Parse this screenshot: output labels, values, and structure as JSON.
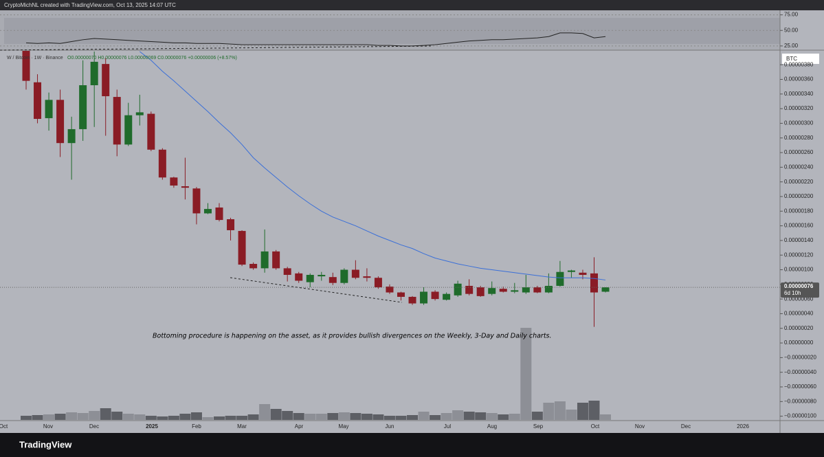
{
  "header": {
    "credit": "CryptoMichNL created with TradingView.com, Oct 13, 2025 14:07 UTC",
    "logo": "TradingView"
  },
  "chart_data": {
    "type": "candlestick",
    "symbol": "W / Bitcoin · 1W · Binance",
    "ohlc_text": "O0.00000070 H0.00000076 L0.00000069 C0.00000076 +0.00000006 (+8.57%)",
    "annotation": "Bottoming procedure is happening on the asset, as it provides bullish divergences on the Weekly, 3-Day and Daily charts.",
    "currency": "BTC",
    "last_price": "0.00000076",
    "countdown": "6d 10h",
    "up_color": "#1f6b2b",
    "down_color": "#8a1c25",
    "open": [
      4.03e-06,
      3.56e-06,
      3.07e-06,
      3.32e-06,
      2.73e-06,
      2.92e-06,
      3.52e-06,
      3.81e-06,
      3.36e-06,
      2.71e-06,
      3.11e-06,
      3.13e-06,
      2.64e-06,
      2.26e-06,
      2.14e-06,
      2.11e-06,
      1.77e-06,
      1.85e-06,
      1.69e-06,
      1.53e-06,
      1.08e-06,
      1.02e-06,
      1.25e-06,
      1.02e-06,
      9.5e-07,
      8.3e-07,
      9.1e-07,
      9e-07,
      8.2e-07,
      1e-06,
      9.1e-07,
      8.9e-07,
      7.7e-07,
      6.9e-07,
      6.3e-07,
      5.4e-07,
      7e-07,
      5.9e-07,
      6.5e-07,
      7.8e-07,
      7.6e-07,
      6.7e-07,
      7.4e-07,
      7e-07,
      6.9e-07,
      7.6e-07,
      6.9e-07,
      7.8e-07,
      9.7e-07,
      9.6e-07,
      9.5e-07,
      7e-07
    ],
    "high": [
      4.08e-06,
      3.67e-06,
      3.42e-06,
      3.46e-06,
      3.09e-06,
      3.86e-06,
      3.98e-06,
      3.89e-06,
      3.46e-06,
      3.28e-06,
      3.39e-06,
      3.16e-06,
      2.66e-06,
      2.27e-06,
      2.53e-06,
      2.13e-06,
      1.91e-06,
      1.91e-06,
      1.71e-06,
      1.54e-06,
      1.1e-06,
      1.55e-06,
      1.27e-06,
      1.04e-06,
      9.7e-07,
      9.5e-07,
      9.7e-07,
      9.6e-07,
      1.02e-06,
      1.13e-06,
      1.02e-06,
      9.1e-07,
      8e-07,
      7e-07,
      6.4e-07,
      7.6e-07,
      7.2e-07,
      6.9e-07,
      8.5e-07,
      8.7e-07,
      7.8e-07,
      8.4e-07,
      7.7e-07,
      8.2e-07,
      9.3e-07,
      7.8e-07,
      9.5e-07,
      1.12e-06,
      1e-06,
      1e-06,
      1.17e-06,
      7.6e-07
    ],
    "low": [
      3.46e-06,
      3e-06,
      2.9e-06,
      2.54e-06,
      2.23e-06,
      2.76e-06,
      2.95e-06,
      2.83e-06,
      2.55e-06,
      2.69e-06,
      2.97e-06,
      2.62e-06,
      2.23e-06,
      2.12e-06,
      1.96e-06,
      1.62e-06,
      1.76e-06,
      1.66e-06,
      1.4e-06,
      1.05e-06,
      1e-06,
      9.6e-07,
      1e-06,
      8.4e-07,
      8.2e-07,
      7.6e-07,
      8.5e-07,
      7.9e-07,
      8e-07,
      8.7e-07,
      8.4e-07,
      7.4e-07,
      6.7e-07,
      5.8e-07,
      5.2e-07,
      5.2e-07,
      5.8e-07,
      5.8e-07,
      6.3e-07,
      6.5e-07,
      6.3e-07,
      6.5e-07,
      6.9e-07,
      6.8e-07,
      6.7e-07,
      6.8e-07,
      6.8e-07,
      7.7e-07,
      8.9e-07,
      8.7e-07,
      2.2e-07,
      6.9e-07
    ],
    "close": [
      3.58e-06,
      3.06e-06,
      3.32e-06,
      2.73e-06,
      2.92e-06,
      3.52e-06,
      3.84e-06,
      3.37e-06,
      2.71e-06,
      3.11e-06,
      3.15e-06,
      2.64e-06,
      2.26e-06,
      2.15e-06,
      2.12e-06,
      1.77e-06,
      1.83e-06,
      1.68e-06,
      1.54e-06,
      1.07e-06,
      1.02e-06,
      1.25e-06,
      1.02e-06,
      9.3e-07,
      8.5e-07,
      9.3e-07,
      9.3e-07,
      8.2e-07,
      1e-06,
      8.9e-07,
      8.9e-07,
      7.6e-07,
      6.9e-07,
      6.3e-07,
      5.4e-07,
      7e-07,
      6e-07,
      6.7e-07,
      8.1e-07,
      6.7e-07,
      6.4e-07,
      7.5e-07,
      7e-07,
      7.2e-07,
      7.6e-07,
      6.9e-07,
      7.8e-07,
      9.7e-07,
      9.9e-07,
      9.3e-07,
      6.9e-07,
      7.6e-07
    ],
    "ema": {
      "color": "#3a6fd8",
      "values": [
        null,
        null,
        null,
        null,
        null,
        null,
        null,
        null,
        null,
        null,
        3.98e-06,
        3.86e-06,
        3.71e-06,
        3.58e-06,
        3.44e-06,
        3.3e-06,
        3.16e-06,
        3.01e-06,
        2.87e-06,
        2.71e-06,
        2.53e-06,
        2.39e-06,
        2.26e-06,
        2.13e-06,
        2.01e-06,
        1.9e-06,
        1.8e-06,
        1.72e-06,
        1.66e-06,
        1.6e-06,
        1.53e-06,
        1.46e-06,
        1.4e-06,
        1.34e-06,
        1.29e-06,
        1.22e-06,
        1.16e-06,
        1.12e-06,
        1.08e-06,
        1.05e-06,
        1.02e-06,
        1e-06,
        9.8e-07,
        9.6e-07,
        9.4e-07,
        9.2e-07,
        9e-07,
        8.9e-07,
        8.9e-07,
        8.9e-07,
        8.8e-07,
        8.6e-07
      ]
    },
    "volume": [
      6,
      7,
      8,
      9,
      11,
      10,
      13,
      17,
      12,
      9,
      8,
      6,
      5,
      6,
      9,
      11,
      4,
      5,
      6,
      6,
      8,
      23,
      16,
      13,
      10,
      9,
      9,
      10,
      11,
      10,
      9,
      8,
      6,
      6,
      7,
      12,
      7,
      10,
      14,
      12,
      11,
      10,
      8,
      9,
      134,
      12,
      25,
      27,
      15,
      25,
      28,
      8
    ],
    "volume_lim": [
      0,
      140
    ],
    "rsi": [
      30,
      29,
      30,
      29,
      32,
      35,
      37,
      36,
      35,
      34,
      33,
      32,
      31,
      30,
      30,
      29,
      29,
      29,
      28,
      27,
      27,
      27,
      27,
      27,
      27,
      27,
      27,
      27,
      27,
      27,
      27,
      26,
      26,
      25,
      25,
      26,
      27,
      29,
      31,
      33,
      34,
      35,
      35,
      36,
      37,
      38,
      40,
      46,
      46,
      45,
      38,
      40
    ],
    "rsi_lim": [
      16,
      79
    ],
    "rsi_ticks": [
      {
        "value": 25,
        "label": "25.00"
      },
      {
        "value": 50,
        "label": "50.00"
      },
      {
        "value": 75,
        "label": "75.00"
      }
    ],
    "ylim": [
      -1.21e-06,
      3.98e-06
    ],
    "yticks": [
      {
        "value": -1e-06,
        "label": "−0.00000100"
      },
      {
        "value": -8e-07,
        "label": "−0.00000080"
      },
      {
        "value": -6e-07,
        "label": "−0.00000060"
      },
      {
        "value": -4e-07,
        "label": "−0.00000040"
      },
      {
        "value": -2e-07,
        "label": "−0.00000020"
      },
      {
        "value": 0,
        "label": "0.00000000"
      },
      {
        "value": 2e-07,
        "label": "0.00000020"
      },
      {
        "value": 4e-07,
        "label": "0.00000040"
      },
      {
        "value": 6e-07,
        "label": "0.00000060"
      },
      {
        "value": 8e-07,
        "label": "0.00000080"
      },
      {
        "value": 1e-06,
        "label": "0.00000100"
      },
      {
        "value": 1.2e-06,
        "label": "0.00000120"
      },
      {
        "value": 1.4e-06,
        "label": "0.00000140"
      },
      {
        "value": 1.6e-06,
        "label": "0.00000160"
      },
      {
        "value": 1.8e-06,
        "label": "0.00000180"
      },
      {
        "value": 2e-06,
        "label": "0.00000200"
      },
      {
        "value": 2.2e-06,
        "label": "0.00000220"
      },
      {
        "value": 2.4e-06,
        "label": "0.00000240"
      },
      {
        "value": 2.6e-06,
        "label": "0.00000260"
      },
      {
        "value": 2.8e-06,
        "label": "0.00000280"
      },
      {
        "value": 3e-06,
        "label": "0.00000300"
      },
      {
        "value": 3.2e-06,
        "label": "0.00000320"
      },
      {
        "value": 3.4e-06,
        "label": "0.00000340"
      },
      {
        "value": 3.6e-06,
        "label": "0.00000360"
      },
      {
        "value": 3.8e-06,
        "label": "0.00000380"
      }
    ],
    "time_labels": [
      "Oct",
      "Nov",
      "Dec",
      "2025",
      "Feb",
      "Mar",
      "Apr",
      "May",
      "Jun",
      "Jul",
      "Aug",
      "Sep",
      "Oct",
      "Nov",
      "Dec",
      "2026"
    ]
  }
}
